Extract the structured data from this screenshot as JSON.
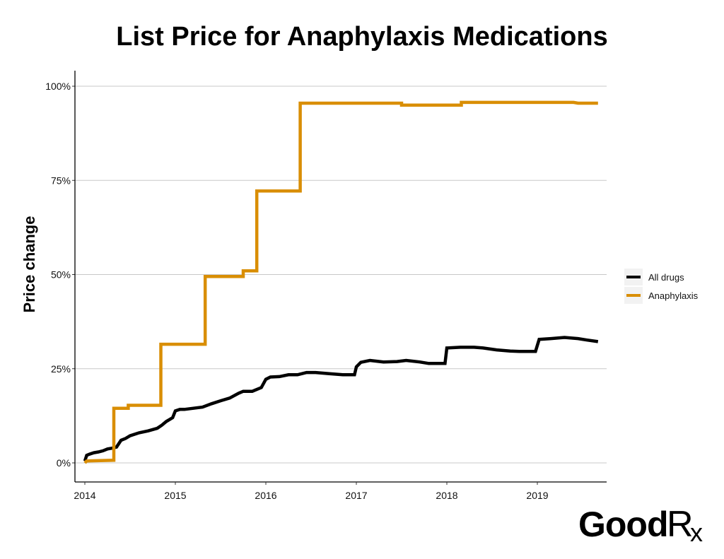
{
  "chart_data": {
    "type": "line",
    "title": "List Price for Anaphylaxis Medications",
    "xlabel": "",
    "ylabel": "Price change",
    "xlim": [
      2014,
      2019.67
    ],
    "ylim": [
      -0.05,
      1.0
    ],
    "xticks": [
      2014,
      2015,
      2016,
      2017,
      2018,
      2019
    ],
    "xtick_labels": [
      "2014",
      "2015",
      "2016",
      "2017",
      "2018",
      "2019"
    ],
    "yticks": [
      0,
      0.25,
      0.5,
      0.75,
      1.0
    ],
    "ytick_labels": [
      "0%",
      "25%",
      "50%",
      "75%",
      "100%"
    ],
    "grid": "horizontal",
    "legend_position": "right",
    "series": [
      {
        "name": "All drugs",
        "color": "#000000",
        "points": [
          [
            2014.0,
            0.005
          ],
          [
            2014.02,
            0.02
          ],
          [
            2014.05,
            0.023
          ],
          [
            2014.1,
            0.027
          ],
          [
            2014.15,
            0.029
          ],
          [
            2014.2,
            0.032
          ],
          [
            2014.25,
            0.037
          ],
          [
            2014.3,
            0.039
          ],
          [
            2014.35,
            0.042
          ],
          [
            2014.4,
            0.06
          ],
          [
            2014.45,
            0.065
          ],
          [
            2014.5,
            0.072
          ],
          [
            2014.6,
            0.08
          ],
          [
            2014.7,
            0.085
          ],
          [
            2014.8,
            0.092
          ],
          [
            2014.85,
            0.1
          ],
          [
            2014.9,
            0.11
          ],
          [
            2014.97,
            0.12
          ],
          [
            2015.0,
            0.138
          ],
          [
            2015.05,
            0.142
          ],
          [
            2015.1,
            0.142
          ],
          [
            2015.2,
            0.145
          ],
          [
            2015.3,
            0.148
          ],
          [
            2015.4,
            0.157
          ],
          [
            2015.5,
            0.165
          ],
          [
            2015.6,
            0.172
          ],
          [
            2015.7,
            0.185
          ],
          [
            2015.75,
            0.19
          ],
          [
            2015.85,
            0.19
          ],
          [
            2015.95,
            0.2
          ],
          [
            2016.0,
            0.222
          ],
          [
            2016.05,
            0.228
          ],
          [
            2016.15,
            0.229
          ],
          [
            2016.25,
            0.234
          ],
          [
            2016.35,
            0.234
          ],
          [
            2016.45,
            0.24
          ],
          [
            2016.55,
            0.24
          ],
          [
            2016.7,
            0.237
          ],
          [
            2016.85,
            0.234
          ],
          [
            2016.98,
            0.234
          ],
          [
            2017.0,
            0.255
          ],
          [
            2017.05,
            0.267
          ],
          [
            2017.15,
            0.272
          ],
          [
            2017.3,
            0.268
          ],
          [
            2017.45,
            0.269
          ],
          [
            2017.55,
            0.272
          ],
          [
            2017.7,
            0.268
          ],
          [
            2017.8,
            0.264
          ],
          [
            2017.98,
            0.264
          ],
          [
            2018.0,
            0.305
          ],
          [
            2018.15,
            0.307
          ],
          [
            2018.3,
            0.307
          ],
          [
            2018.4,
            0.305
          ],
          [
            2018.55,
            0.3
          ],
          [
            2018.7,
            0.297
          ],
          [
            2018.8,
            0.296
          ],
          [
            2018.98,
            0.296
          ],
          [
            2019.02,
            0.328
          ],
          [
            2019.15,
            0.33
          ],
          [
            2019.3,
            0.333
          ],
          [
            2019.45,
            0.33
          ],
          [
            2019.55,
            0.326
          ],
          [
            2019.67,
            0.322
          ]
        ]
      },
      {
        "name": "Anaphylaxis",
        "color": "#D98E04",
        "points": [
          [
            2014.0,
            0.0
          ],
          [
            2014.02,
            0.005
          ],
          [
            2014.32,
            0.007
          ],
          [
            2014.32,
            0.145
          ],
          [
            2014.48,
            0.145
          ],
          [
            2014.48,
            0.153
          ],
          [
            2014.84,
            0.153
          ],
          [
            2014.84,
            0.315
          ],
          [
            2015.33,
            0.315
          ],
          [
            2015.33,
            0.495
          ],
          [
            2015.75,
            0.495
          ],
          [
            2015.75,
            0.51
          ],
          [
            2015.9,
            0.51
          ],
          [
            2015.9,
            0.722
          ],
          [
            2016.38,
            0.722
          ],
          [
            2016.38,
            0.955
          ],
          [
            2017.5,
            0.955
          ],
          [
            2017.5,
            0.95
          ],
          [
            2018.16,
            0.95
          ],
          [
            2018.16,
            0.957
          ],
          [
            2019.4,
            0.957
          ],
          [
            2019.45,
            0.955
          ],
          [
            2019.67,
            0.955
          ]
        ]
      }
    ]
  },
  "logo": {
    "main": "Good",
    "r": "R",
    "x": "x"
  }
}
